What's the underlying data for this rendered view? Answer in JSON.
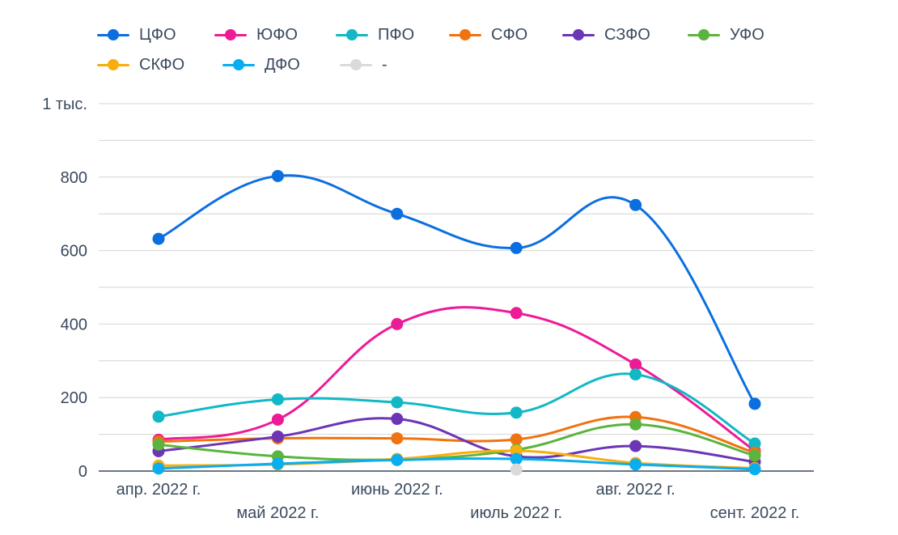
{
  "chart_data": {
    "type": "line",
    "categories": [
      "апр. 2022 г.",
      "май 2022 г.",
      "июнь 2022 г.",
      "июль 2022 г.",
      "авг. 2022 г.",
      "сент. 2022 г."
    ],
    "ylim": [
      0,
      1000
    ],
    "yticks": [
      {
        "value": 0,
        "label": "0"
      },
      {
        "value": 200,
        "label": "200"
      },
      {
        "value": 400,
        "label": "400"
      },
      {
        "value": 600,
        "label": "600"
      },
      {
        "value": 800,
        "label": "800"
      },
      {
        "value": 1000,
        "label": "1 тыс."
      }
    ],
    "minor_gridlines": [
      100,
      300,
      500,
      700,
      900
    ],
    "legend_position": "top-left",
    "series": [
      {
        "name": "ЦФО",
        "color": "#0b6fe0",
        "values": [
          632,
          803,
          700,
          607,
          724,
          183
        ]
      },
      {
        "name": "ЮФО",
        "color": "#ee1b96",
        "values": [
          85,
          140,
          400,
          430,
          290,
          55
        ]
      },
      {
        "name": "ПФО",
        "color": "#12b8c5",
        "values": [
          148,
          195,
          187,
          159,
          263,
          75
        ]
      },
      {
        "name": "СФО",
        "color": "#f0730f",
        "values": [
          80,
          89,
          89,
          86,
          147,
          50
        ]
      },
      {
        "name": "СЗФО",
        "color": "#6c35b6",
        "values": [
          54,
          94,
          142,
          40,
          68,
          25
        ]
      },
      {
        "name": "УФО",
        "color": "#5ab43d",
        "values": [
          72,
          40,
          32,
          58,
          127,
          42
        ]
      },
      {
        "name": "СКФО",
        "color": "#f8ae0c",
        "values": [
          15,
          18,
          33,
          55,
          22,
          8
        ]
      },
      {
        "name": "ДФО",
        "color": "#08aef0",
        "values": [
          7,
          20,
          30,
          33,
          18,
          5
        ]
      },
      {
        "name": "-",
        "color": "#dadada",
        "values": [
          null,
          null,
          null,
          4,
          null,
          null
        ]
      }
    ]
  }
}
